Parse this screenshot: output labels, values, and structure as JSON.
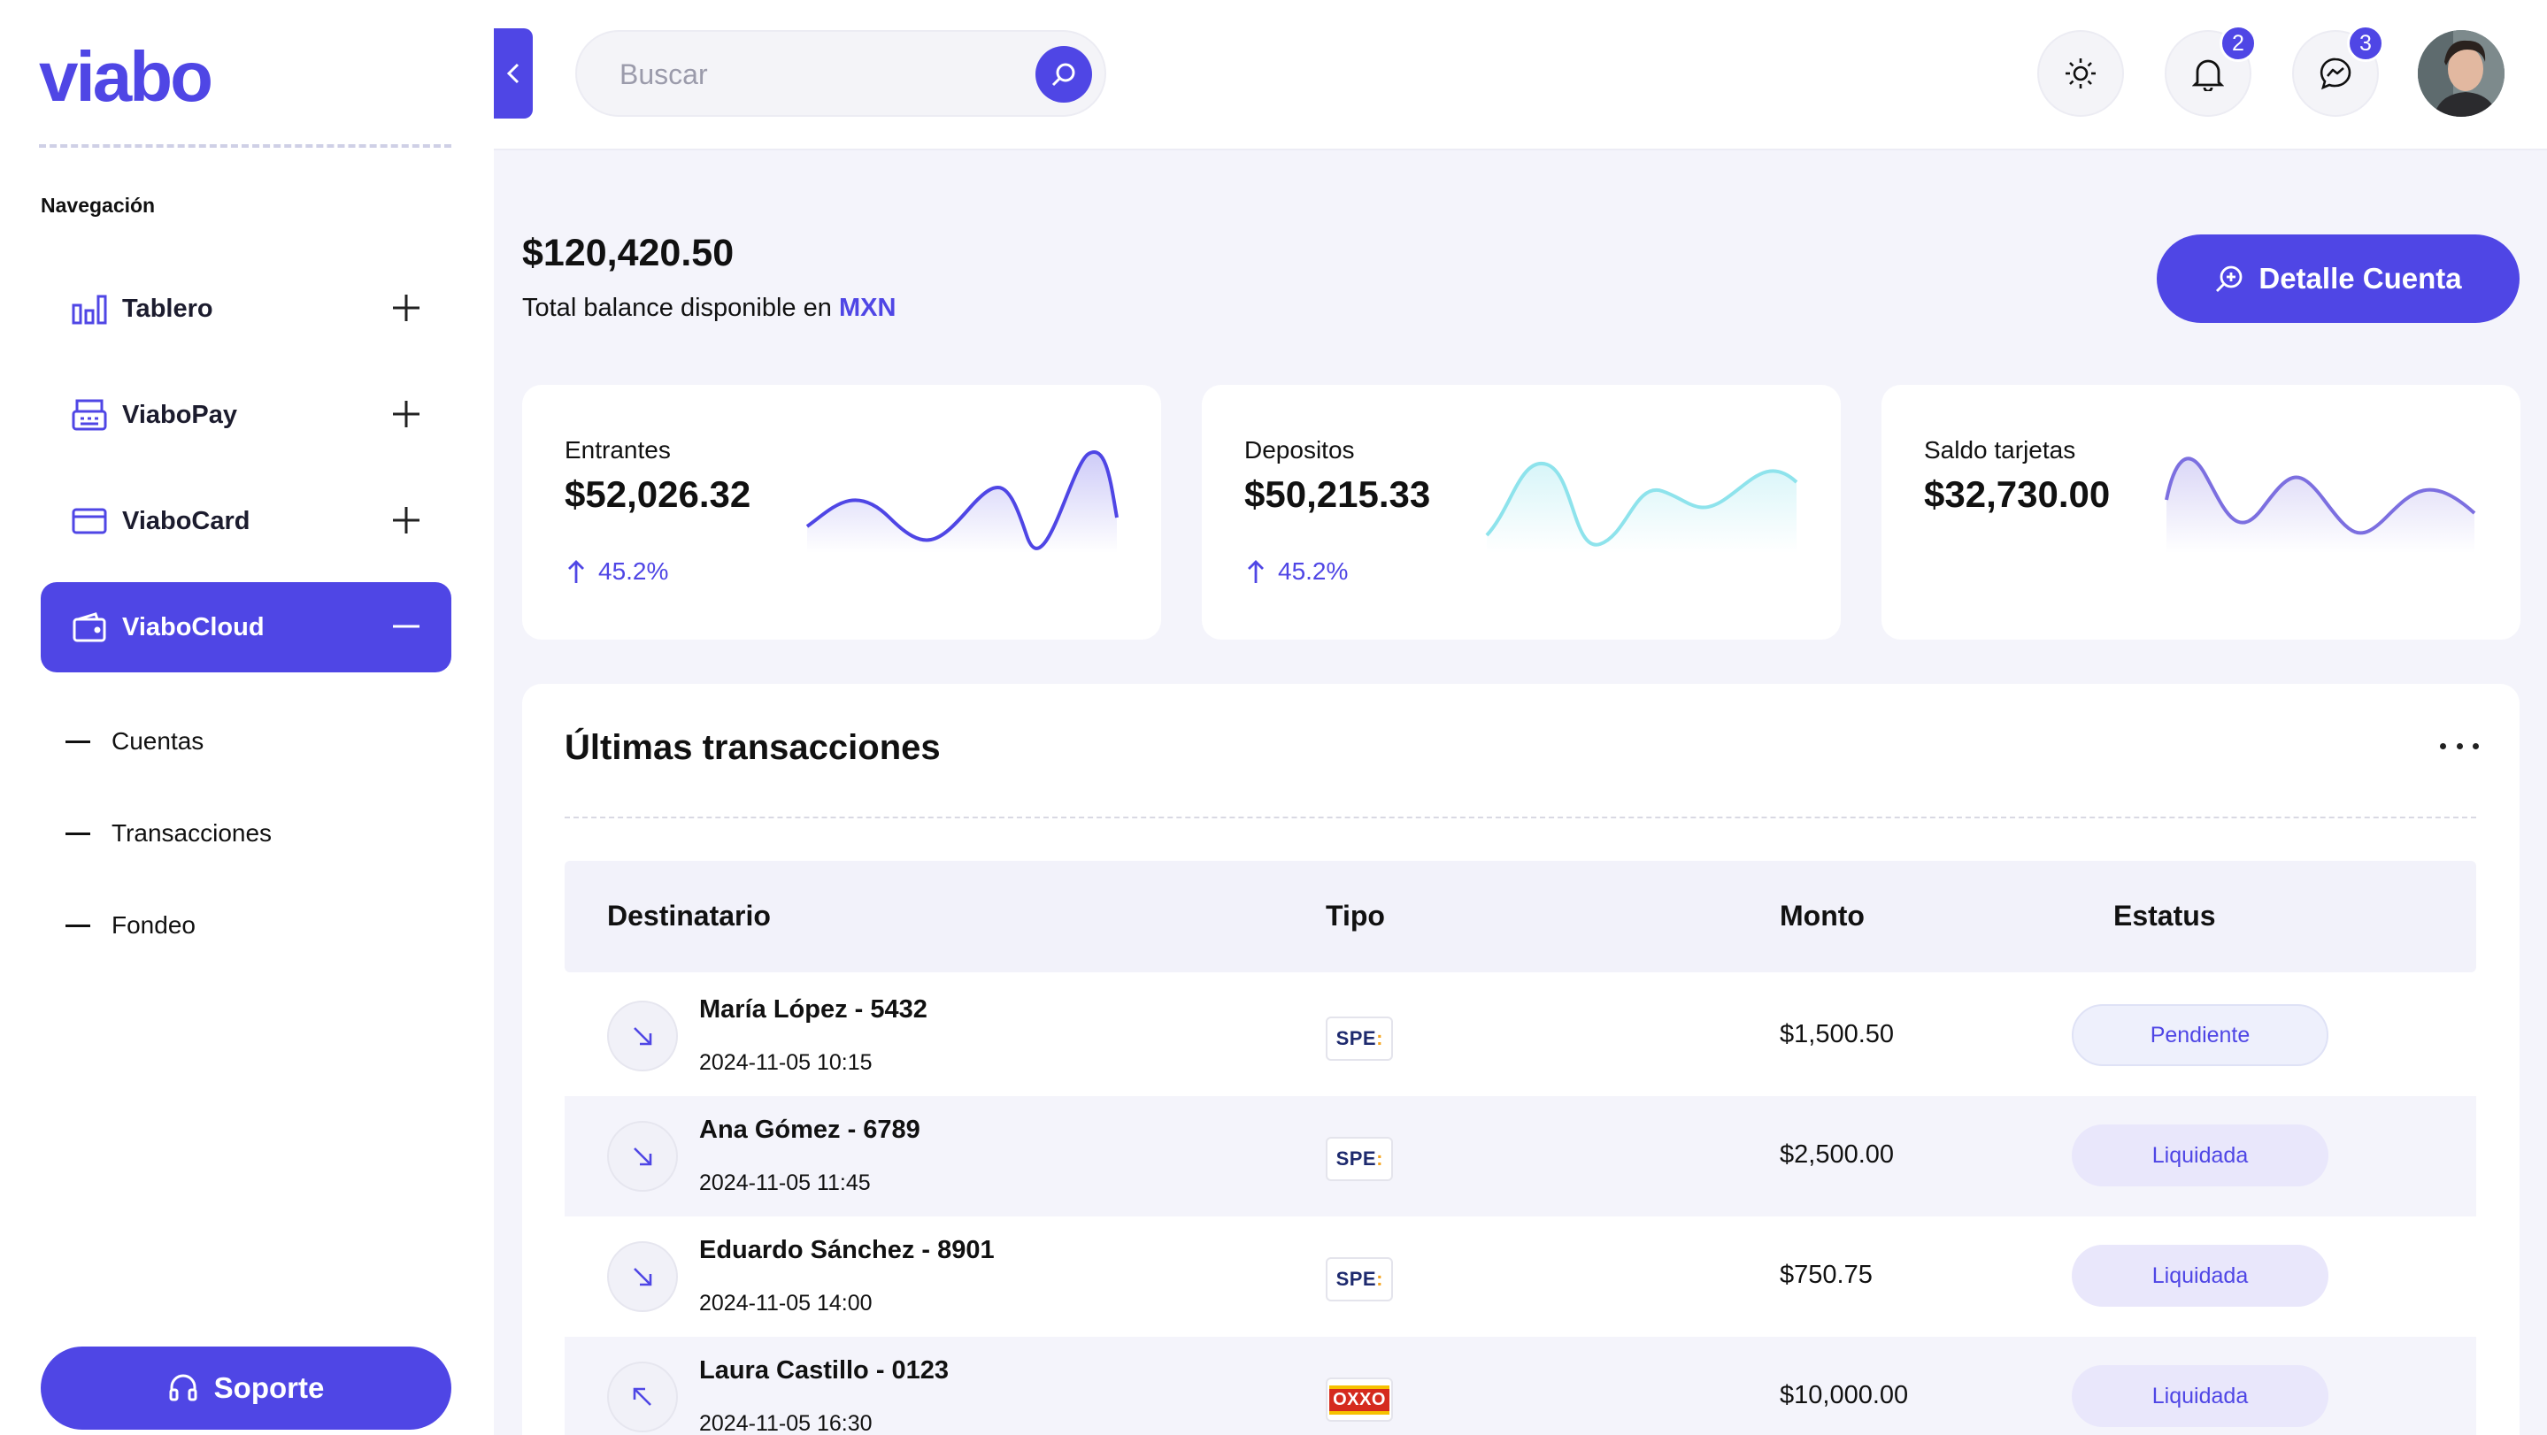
{
  "brand": {
    "logo_text": "viabo",
    "accent": "#4f46e5"
  },
  "sidebar": {
    "heading": "Navegación",
    "items": [
      {
        "label": "Tablero",
        "icon": "bar-chart-icon",
        "expanded": false
      },
      {
        "label": "ViaboPay",
        "icon": "pos-terminal-icon",
        "expanded": false
      },
      {
        "label": "ViaboCard",
        "icon": "credit-card-icon",
        "expanded": false
      },
      {
        "label": "ViaboCloud",
        "icon": "wallet-icon",
        "expanded": true
      }
    ],
    "subitems": [
      {
        "label": "Cuentas"
      },
      {
        "label": "Transacciones"
      },
      {
        "label": "Fondeo"
      }
    ],
    "support_label": "Soporte"
  },
  "header": {
    "search_placeholder": "Buscar",
    "notifications_count": "2",
    "messages_count": "3"
  },
  "balance": {
    "amount": "$120,420.50",
    "label_prefix": "Total balance disponible en",
    "currency": "MXN",
    "detail_button": "Detalle Cuenta"
  },
  "cards": [
    {
      "label": "Entrantes",
      "value": "$52,026.32",
      "change": "45.2%",
      "color": "#4f46e5"
    },
    {
      "label": "Depositos",
      "value": "$50,215.33",
      "change": "45.2%",
      "color": "#8ee3ec"
    },
    {
      "label": "Saldo tarjetas",
      "value": "$32,730.00",
      "color": "#7c6fe0"
    }
  ],
  "transactions": {
    "title": "Últimas transacciones",
    "columns": {
      "recipient": "Destinatario",
      "type": "Tipo",
      "amount": "Monto",
      "status": "Estatus"
    },
    "rows": [
      {
        "name": "María López - 5432",
        "date": "2024-11-05 10:15",
        "type": "SPEI",
        "amount": "$1,500.50",
        "status": "Pendiente",
        "direction": "incoming"
      },
      {
        "name": "Ana Gómez - 6789",
        "date": "2024-11-05 11:45",
        "type": "SPEI",
        "amount": "$2,500.00",
        "status": "Liquidada",
        "direction": "incoming"
      },
      {
        "name": "Eduardo Sánchez - 8901",
        "date": "2024-11-05 14:00",
        "type": "SPEI",
        "amount": "$750.75",
        "status": "Liquidada",
        "direction": "incoming"
      },
      {
        "name": "Laura Castillo - 0123",
        "date": "2024-11-05 16:30",
        "type": "OXXO",
        "amount": "$10,000.00",
        "status": "Liquidada",
        "direction": "outgoing"
      }
    ]
  },
  "type_logos": {
    "spei_text": "SPE",
    "oxxo_text": "OXXO"
  }
}
